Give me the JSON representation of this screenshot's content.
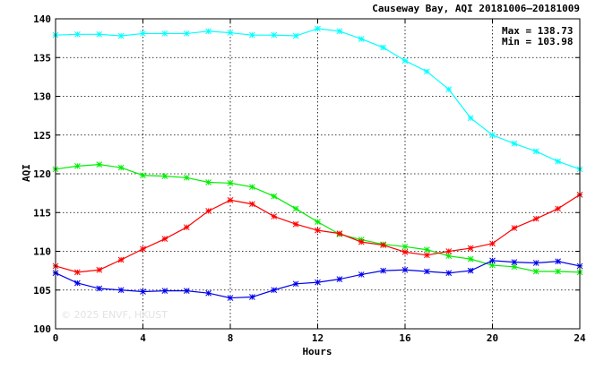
{
  "chart_data": {
    "type": "line",
    "title": "Causeway Bay, AQI 20181006–20181009",
    "xlabel": "Hours",
    "ylabel": "AQI",
    "xlim": [
      0,
      24
    ],
    "ylim": [
      100,
      140
    ],
    "xticks": [
      0,
      4,
      8,
      12,
      16,
      20,
      24
    ],
    "yticks": [
      100,
      105,
      110,
      115,
      120,
      125,
      130,
      135,
      140
    ],
    "grid": true,
    "stats": {
      "max_label": "Max = 138.73",
      "min_label": "Min = 103.98"
    },
    "watermark": "© 2025  ENVF, HKUST",
    "x": [
      0,
      1,
      2,
      3,
      4,
      5,
      6,
      7,
      8,
      9,
      10,
      11,
      12,
      13,
      14,
      15,
      16,
      17,
      18,
      19,
      20,
      21,
      22,
      23,
      24
    ],
    "series": [
      {
        "color": "#00ffff",
        "values": [
          137.9,
          138.0,
          138.0,
          137.8,
          138.1,
          138.1,
          138.1,
          138.4,
          138.2,
          137.9,
          137.9,
          137.8,
          138.73,
          138.4,
          137.4,
          136.3,
          134.6,
          133.2,
          130.9,
          127.2,
          125.0,
          123.9,
          122.9,
          121.6,
          120.6
        ]
      },
      {
        "color": "#00ee00",
        "values": [
          120.6,
          121.0,
          121.2,
          120.8,
          119.8,
          119.7,
          119.5,
          118.9,
          118.8,
          118.3,
          117.1,
          115.5,
          113.8,
          112.2,
          111.5,
          110.9,
          110.6,
          110.2,
          109.4,
          109.0,
          108.2,
          108.0,
          107.4,
          107.4,
          107.3
        ]
      },
      {
        "color": "#ff0000",
        "values": [
          108.1,
          107.3,
          107.6,
          108.9,
          110.3,
          111.6,
          113.1,
          115.2,
          116.6,
          116.1,
          114.5,
          113.5,
          112.7,
          112.3,
          111.2,
          110.8,
          109.9,
          109.5,
          110.0,
          110.4,
          111.0,
          113.0,
          114.2,
          115.5,
          117.3
        ]
      },
      {
        "color": "#0000ee",
        "values": [
          107.2,
          105.9,
          105.2,
          105.0,
          104.8,
          104.9,
          104.9,
          104.6,
          103.98,
          104.1,
          105.0,
          105.8,
          106.0,
          106.4,
          107.0,
          107.5,
          107.6,
          107.4,
          107.2,
          107.5,
          108.8,
          108.6,
          108.5,
          108.7,
          108.1
        ]
      }
    ]
  }
}
